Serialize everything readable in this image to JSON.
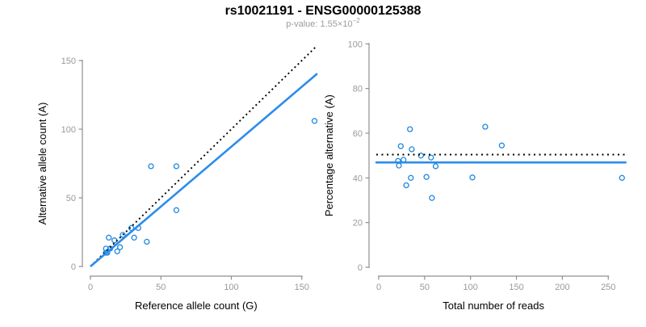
{
  "header": {
    "title": "rs10021191 - ENSG00000125388",
    "subtitle_prefix": "p-value: 1.55×10",
    "subtitle_exponent": "−2"
  },
  "colors": {
    "point_blue": "#1e87e0",
    "line_blue": "#2b8ceb",
    "dashed_black": "#000000",
    "axis_gray": "#8f8f8f",
    "tick_label_gray": "#999999",
    "title_black": "#000000"
  },
  "chart_data": [
    {
      "type": "scatter",
      "name": "allele-counts-scatter",
      "title": "",
      "xlabel": "Reference allele count (G)",
      "ylabel": "Alternative allele count (A)",
      "xlim": [
        0,
        163
      ],
      "ylim": [
        0,
        163
      ],
      "xticks": [
        0,
        50,
        100,
        150
      ],
      "yticks": [
        0,
        50,
        100,
        150
      ],
      "grid": false,
      "legend": "none",
      "marker": "open-circle",
      "points": [
        [
          43,
          73
        ],
        [
          13,
          21
        ],
        [
          61,
          73
        ],
        [
          11,
          13
        ],
        [
          17,
          19
        ],
        [
          23,
          23
        ],
        [
          29,
          28
        ],
        [
          14,
          13
        ],
        [
          11,
          10
        ],
        [
          12,
          10
        ],
        [
          34,
          28
        ],
        [
          21,
          14
        ],
        [
          31,
          21
        ],
        [
          61,
          41
        ],
        [
          19,
          11
        ],
        [
          40,
          18
        ],
        [
          159,
          106
        ]
      ],
      "identity_line": {
        "style": "dotted",
        "x1": 0,
        "y1": 0,
        "x2": 160,
        "y2": 160
      },
      "fit_line": {
        "style": "solid",
        "x1": 0,
        "y1": 0,
        "x2": 161,
        "y2": 140.5
      }
    },
    {
      "type": "scatter",
      "name": "percentage-vs-reads-scatter",
      "title": "",
      "xlabel": "Total number of reads",
      "ylabel": "Percentage alternative (A)",
      "xlim": [
        0,
        270
      ],
      "ylim": [
        0,
        100
      ],
      "xticks": [
        0,
        50,
        100,
        150,
        200,
        250
      ],
      "yticks": [
        0,
        20,
        40,
        60,
        80,
        100
      ],
      "grid": false,
      "legend": "none",
      "marker": "open-circle",
      "points": [
        [
          116,
          62.9
        ],
        [
          34,
          61.8
        ],
        [
          134,
          54.5
        ],
        [
          24,
          54.2
        ],
        [
          36,
          52.8
        ],
        [
          46,
          50.0
        ],
        [
          57,
          49.1
        ],
        [
          27,
          48.1
        ],
        [
          21,
          47.6
        ],
        [
          22,
          45.5
        ],
        [
          62,
          45.2
        ],
        [
          35,
          40.0
        ],
        [
          52,
          40.4
        ],
        [
          102,
          40.2
        ],
        [
          30,
          36.7
        ],
        [
          58,
          31.0
        ],
        [
          265,
          40.0
        ]
      ],
      "expected_line": {
        "style": "dotted",
        "y": 50.4,
        "x1": 0,
        "x2": 268
      },
      "mean_line": {
        "style": "solid",
        "y": 46.9,
        "x1": 0,
        "x2": 268
      }
    }
  ]
}
